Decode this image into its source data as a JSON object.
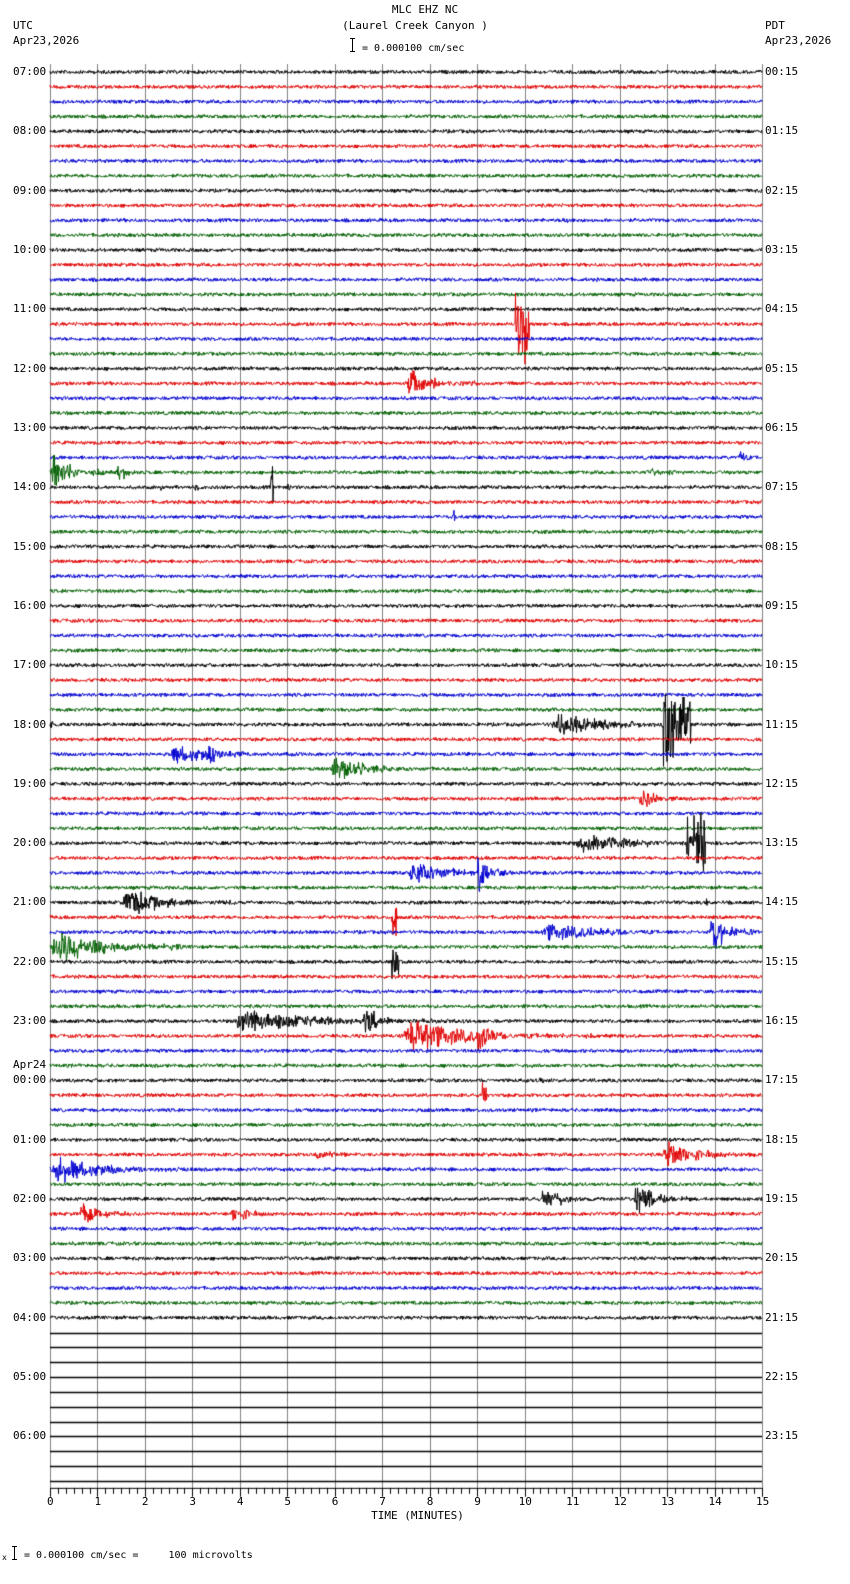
{
  "header": {
    "station": "MLC EHZ NC",
    "location": "(Laurel Creek Canyon )",
    "scale_text": "= 0.000100 cm/sec",
    "left_tz": "UTC",
    "left_date": "Apr23,2026",
    "right_tz": "PDT",
    "right_date": "Apr23,2026"
  },
  "footer": {
    "scale_note": "= 0.000100 cm/sec =     100 microvolts",
    "prefix_glyph": "x"
  },
  "colors": {
    "trace_cycle": [
      "#000000",
      "#e00000",
      "#0000d0",
      "#006000"
    ],
    "grid": "#808080",
    "empty_line": "#000000"
  },
  "chart_data": {
    "type": "line",
    "title": "MLC EHZ NC (Laurel Creek Canyon )",
    "subtitle": "= 0.000100 cm/sec",
    "xlabel": "TIME (MINUTES)",
    "ylabel": "",
    "xlim": [
      0,
      15
    ],
    "x_ticks": [
      "0",
      "1",
      "2",
      "3",
      "4",
      "5",
      "6",
      "7",
      "8",
      "9",
      "10",
      "11",
      "12",
      "13",
      "14",
      "15"
    ],
    "minor_ticks_per_minute": 6,
    "grid": true,
    "rows_total": 96,
    "rows_with_data": 85,
    "row_minutes": 15,
    "left_hour_labels": [
      {
        "row": 0,
        "text": "07:00"
      },
      {
        "row": 4,
        "text": "08:00"
      },
      {
        "row": 8,
        "text": "09:00"
      },
      {
        "row": 12,
        "text": "10:00"
      },
      {
        "row": 16,
        "text": "11:00"
      },
      {
        "row": 20,
        "text": "12:00"
      },
      {
        "row": 24,
        "text": "13:00"
      },
      {
        "row": 28,
        "text": "14:00"
      },
      {
        "row": 32,
        "text": "15:00"
      },
      {
        "row": 36,
        "text": "16:00"
      },
      {
        "row": 40,
        "text": "17:00"
      },
      {
        "row": 44,
        "text": "18:00"
      },
      {
        "row": 48,
        "text": "19:00"
      },
      {
        "row": 52,
        "text": "20:00"
      },
      {
        "row": 56,
        "text": "21:00"
      },
      {
        "row": 60,
        "text": "22:00"
      },
      {
        "row": 64,
        "text": "23:00"
      },
      {
        "row": 68,
        "text": "00:00",
        "date": "Apr24"
      },
      {
        "row": 72,
        "text": "01:00"
      },
      {
        "row": 76,
        "text": "02:00"
      },
      {
        "row": 80,
        "text": "03:00"
      },
      {
        "row": 84,
        "text": "04:00"
      },
      {
        "row": 88,
        "text": "05:00"
      },
      {
        "row": 92,
        "text": "06:00"
      }
    ],
    "right_hour_labels": [
      {
        "row": 0,
        "text": "00:15"
      },
      {
        "row": 4,
        "text": "01:15"
      },
      {
        "row": 8,
        "text": "02:15"
      },
      {
        "row": 12,
        "text": "03:15"
      },
      {
        "row": 16,
        "text": "04:15"
      },
      {
        "row": 20,
        "text": "05:15"
      },
      {
        "row": 24,
        "text": "06:15"
      },
      {
        "row": 28,
        "text": "07:15"
      },
      {
        "row": 32,
        "text": "08:15"
      },
      {
        "row": 36,
        "text": "09:15"
      },
      {
        "row": 40,
        "text": "10:15"
      },
      {
        "row": 44,
        "text": "11:15"
      },
      {
        "row": 48,
        "text": "12:15"
      },
      {
        "row": 52,
        "text": "13:15"
      },
      {
        "row": 56,
        "text": "14:15"
      },
      {
        "row": 60,
        "text": "15:15"
      },
      {
        "row": 64,
        "text": "16:15"
      },
      {
        "row": 68,
        "text": "17:15"
      },
      {
        "row": 72,
        "text": "18:15"
      },
      {
        "row": 76,
        "text": "19:15"
      },
      {
        "row": 80,
        "text": "20:15"
      },
      {
        "row": 84,
        "text": "21:15"
      },
      {
        "row": 88,
        "text": "22:15"
      },
      {
        "row": 92,
        "text": "23:15"
      }
    ],
    "events": [
      {
        "row": 9,
        "start": 5.6,
        "end": 5.7,
        "amp": 3
      },
      {
        "row": 10,
        "start": 10.8,
        "end": 11.6,
        "amp": 6
      },
      {
        "row": 17,
        "start": 9.8,
        "end": 10.1,
        "amp": 45,
        "spike": true
      },
      {
        "row": 21,
        "start": 7.5,
        "end": 9.0,
        "amp": 20
      },
      {
        "row": 26,
        "start": 14.5,
        "end": 15.0,
        "amp": 12
      },
      {
        "row": 27,
        "start": 0.0,
        "end": 1.2,
        "amp": 30
      },
      {
        "row": 27,
        "start": 1.4,
        "end": 2.0,
        "amp": 18
      },
      {
        "row": 27,
        "start": 12.5,
        "end": 15.0,
        "amp": 6
      },
      {
        "row": 28,
        "start": 2.3,
        "end": 2.9,
        "amp": 5
      },
      {
        "row": 28,
        "start": 3.0,
        "end": 4.0,
        "amp": 5
      },
      {
        "row": 28,
        "start": 4.65,
        "end": 4.7,
        "amp": 30,
        "spike": true
      },
      {
        "row": 28,
        "start": 5.0,
        "end": 5.05,
        "amp": 14,
        "spike": true
      },
      {
        "row": 30,
        "start": 8.5,
        "end": 8.55,
        "amp": 20,
        "spike": true
      },
      {
        "row": 41,
        "start": 10.9,
        "end": 11.0,
        "amp": 8
      },
      {
        "row": 43,
        "start": 14.6,
        "end": 15.0,
        "amp": 9
      },
      {
        "row": 44,
        "start": 10.5,
        "end": 14.8,
        "amp": 14
      },
      {
        "row": 44,
        "start": 12.9,
        "end": 13.5,
        "amp": 45,
        "spike": true
      },
      {
        "row": 44,
        "start": 0.0,
        "end": 0.2,
        "amp": 8
      },
      {
        "row": 45,
        "start": 0.0,
        "end": 0.6,
        "amp": 4
      },
      {
        "row": 46,
        "start": 2.5,
        "end": 5.5,
        "amp": 14
      },
      {
        "row": 46,
        "start": 3.3,
        "end": 3.8,
        "amp": 26
      },
      {
        "row": 47,
        "start": 5.9,
        "end": 8.2,
        "amp": 18
      },
      {
        "row": 49,
        "start": 12.4,
        "end": 13.2,
        "amp": 20
      },
      {
        "row": 50,
        "start": 3.9,
        "end": 4.2,
        "amp": 3
      },
      {
        "row": 51,
        "start": 9.0,
        "end": 10.0,
        "amp": 4
      },
      {
        "row": 52,
        "start": 3.8,
        "end": 4.3,
        "amp": 4
      },
      {
        "row": 52,
        "start": 11.0,
        "end": 15.0,
        "amp": 14
      },
      {
        "row": 52,
        "start": 13.4,
        "end": 13.8,
        "amp": 35,
        "spike": true
      },
      {
        "row": 53,
        "start": 13.5,
        "end": 14.8,
        "amp": 6
      },
      {
        "row": 54,
        "start": 7.5,
        "end": 10.5,
        "amp": 16
      },
      {
        "row": 54,
        "start": 9.0,
        "end": 9.6,
        "amp": 30
      },
      {
        "row": 56,
        "start": 1.5,
        "end": 4.0,
        "amp": 20
      },
      {
        "row": 56,
        "start": 13.8,
        "end": 14.3,
        "amp": 6
      },
      {
        "row": 57,
        "start": 7.2,
        "end": 7.3,
        "amp": 30,
        "spike": true
      },
      {
        "row": 58,
        "start": 10.3,
        "end": 15.0,
        "amp": 12
      },
      {
        "row": 58,
        "start": 13.9,
        "end": 14.9,
        "amp": 28
      },
      {
        "row": 59,
        "start": 0.0,
        "end": 2.8,
        "amp": 26
      },
      {
        "row": 60,
        "start": 7.2,
        "end": 7.35,
        "amp": 30,
        "spike": true
      },
      {
        "row": 64,
        "start": 3.8,
        "end": 9.0,
        "amp": 18
      },
      {
        "row": 64,
        "start": 6.6,
        "end": 7.2,
        "amp": 32
      },
      {
        "row": 65,
        "start": 7.4,
        "end": 11.5,
        "amp": 22
      },
      {
        "row": 65,
        "start": 9.0,
        "end": 9.6,
        "amp": 34
      },
      {
        "row": 68,
        "start": 10.3,
        "end": 10.8,
        "amp": 5
      },
      {
        "row": 69,
        "start": 9.1,
        "end": 9.2,
        "amp": 24,
        "spike": true
      },
      {
        "row": 73,
        "start": 5.5,
        "end": 8.0,
        "amp": 6
      },
      {
        "row": 73,
        "start": 12.9,
        "end": 15.0,
        "amp": 20
      },
      {
        "row": 74,
        "start": 0.0,
        "end": 3.0,
        "amp": 20
      },
      {
        "row": 74,
        "start": 0.15,
        "end": 0.2,
        "amp": 35,
        "spike": true
      },
      {
        "row": 76,
        "start": 10.3,
        "end": 11.7,
        "amp": 18
      },
      {
        "row": 76,
        "start": 12.3,
        "end": 13.5,
        "amp": 24
      },
      {
        "row": 77,
        "start": 0.6,
        "end": 2.5,
        "amp": 14
      },
      {
        "row": 77,
        "start": 3.8,
        "end": 5.0,
        "amp": 14
      },
      {
        "row": 79,
        "start": 2.2,
        "end": 2.4,
        "amp": 8
      }
    ]
  }
}
